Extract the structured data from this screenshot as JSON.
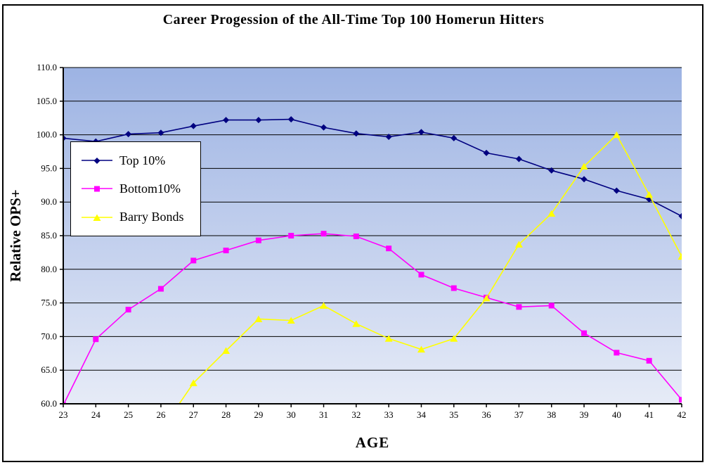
{
  "window": {
    "background_color": "#FFFFFF",
    "frame_border_color": "#000000"
  },
  "chart_data": {
    "type": "line",
    "title": "Career Progession of the All-Time Top 100 Homerun Hitters",
    "xlabel": "AGE",
    "ylabel": "Relative OPS+",
    "x": [
      23,
      24,
      25,
      26,
      27,
      28,
      29,
      30,
      31,
      32,
      33,
      34,
      35,
      36,
      37,
      38,
      39,
      40,
      41,
      42
    ],
    "ylim": [
      60.0,
      110.0
    ],
    "ytick_step": 5,
    "ytick_decimals": 1,
    "grid": "horizontal-only",
    "gridline_color": "#000000",
    "plot_bg_gradient_top": "#9DB3E3",
    "plot_bg_gradient_bottom": "#E6EBF7",
    "legend_position": "upper-left",
    "series": [
      {
        "name": "Top 10%",
        "color": "#000080",
        "marker": "diamond",
        "values": [
          99.5,
          99.0,
          100.1,
          100.3,
          101.3,
          102.2,
          102.2,
          102.3,
          101.1,
          100.2,
          99.7,
          100.4,
          99.5,
          97.3,
          96.4,
          94.7,
          93.4,
          91.7,
          90.4,
          87.9
        ]
      },
      {
        "name": "Bottom10%",
        "color": "#FF00FF",
        "marker": "square",
        "values": [
          59.8,
          69.6,
          74.0,
          77.1,
          81.3,
          82.8,
          84.3,
          85.0,
          85.3,
          84.9,
          83.1,
          79.2,
          77.2,
          75.8,
          74.4,
          74.6,
          70.5,
          67.6,
          66.4,
          60.6
        ]
      },
      {
        "name": "Barry Bonds",
        "color": "#FFFF00",
        "marker": "triangle",
        "values": [
          null,
          null,
          null,
          56.0,
          63.1,
          67.9,
          72.6,
          72.4,
          74.6,
          71.9,
          69.7,
          68.1,
          69.7,
          75.7,
          83.7,
          88.3,
          95.3,
          100.0,
          91.1,
          81.9
        ]
      }
    ]
  }
}
